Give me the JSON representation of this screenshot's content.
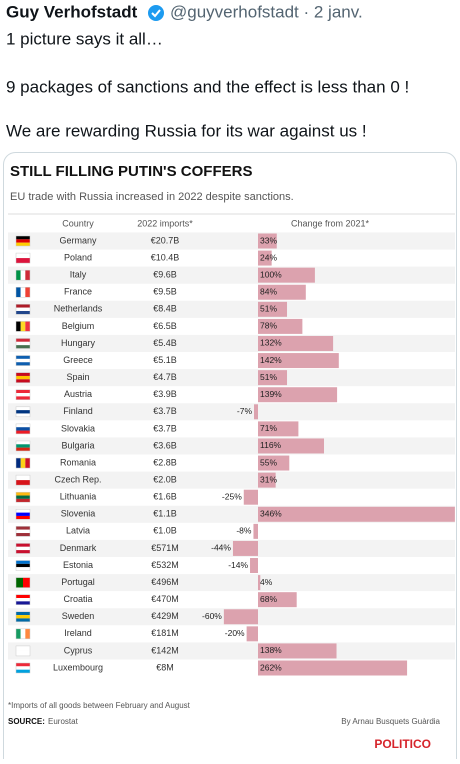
{
  "tweet": {
    "author": "Guy Verhofstadt",
    "handle_date": "@guyverhofstadt · 2 janv.",
    "lines": [
      "1 picture says it all…",
      "9 packages of sanctions and the effect is less than 0 !",
      "We are rewarding Russia for its war against us !"
    ]
  },
  "chart_data": {
    "type": "bar",
    "title": "STILL FILLING PUTIN'S COFFERS",
    "subtitle": "EU trade with Russia increased in 2022 despite sanctions.",
    "columns": [
      "Country",
      "2022 imports*",
      "Change from 2021*"
    ],
    "categories": [
      "Germany",
      "Poland",
      "Italy",
      "France",
      "Netherlands",
      "Belgium",
      "Hungary",
      "Greece",
      "Spain",
      "Austria",
      "Finland",
      "Slovakia",
      "Bulgaria",
      "Romania",
      "Czech Rep.",
      "Lithuania",
      "Slovenia",
      "Latvia",
      "Denmark",
      "Estonia",
      "Portugal",
      "Croatia",
      "Sweden",
      "Ireland",
      "Cyprus",
      "Luxembourg"
    ],
    "imports": [
      "€20.7B",
      "€10.4B",
      "€9.6B",
      "€9.5B",
      "€8.4B",
      "€6.5B",
      "€5.4B",
      "€5.1B",
      "€4.7B",
      "€3.9B",
      "€3.7B",
      "€3.7B",
      "€3.6B",
      "€2.8B",
      "€2.0B",
      "€1.6B",
      "€1.1B",
      "€1.0B",
      "€571M",
      "€532M",
      "€496M",
      "€470M",
      "€429M",
      "€181M",
      "€142M",
      "€8M"
    ],
    "values": [
      33,
      24,
      100,
      84,
      51,
      78,
      132,
      142,
      51,
      139,
      -7,
      71,
      116,
      55,
      31,
      -25,
      346,
      -8,
      -44,
      -14,
      4,
      68,
      -60,
      -20,
      138,
      262
    ],
    "value_labels": [
      "33%",
      "24%",
      "100%",
      "84%",
      "51%",
      "78%",
      "132%",
      "142%",
      "51%",
      "139%",
      "-7%",
      "71%",
      "116%",
      "55%",
      "31%",
      "-25%",
      "346%",
      "-8%",
      "-44%",
      "-14%",
      "4%",
      "68%",
      "-60%",
      "-20%",
      "138%",
      "262%"
    ],
    "color": "#dca2ae",
    "footnote": "*Imports of all goods between February and August",
    "source_label": "SOURCE:",
    "source": "Eurostat",
    "byline": "By Arnau Busquets Guàrdia",
    "logo": "POLITICO"
  }
}
